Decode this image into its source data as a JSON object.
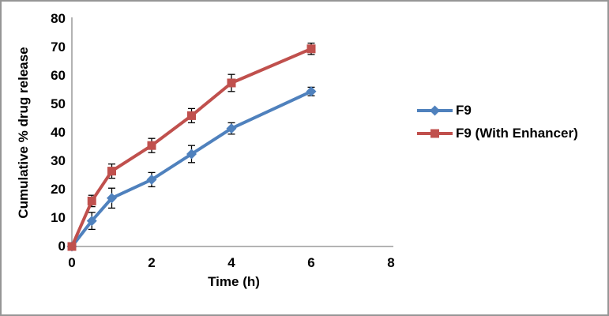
{
  "window": {
    "background": "#ffffff",
    "border_color": "#969696",
    "axis_color": "#9a9a9a",
    "error_bar_color": "#000000"
  },
  "chart_data": {
    "type": "line",
    "title": "",
    "xlabel": "Time (h)",
    "ylabel": "Cumulative % drug release",
    "xlim": [
      0,
      8
    ],
    "ylim": [
      0,
      80
    ],
    "x_ticks": [
      0,
      2,
      4,
      6,
      8
    ],
    "y_ticks": [
      0,
      10,
      20,
      30,
      40,
      50,
      60,
      70,
      80
    ],
    "grid": false,
    "legend_position": "right",
    "x": [
      0,
      0.5,
      1,
      2,
      3,
      4,
      6
    ],
    "series": [
      {
        "name": "F9",
        "color": "#4F81BD",
        "marker": "diamond",
        "values": [
          0,
          9,
          17,
          23.5,
          32.5,
          41.5,
          54.5
        ],
        "errors": [
          0,
          3,
          3.5,
          2.5,
          3,
          2,
          1.5
        ]
      },
      {
        "name": "F9 (With Enhancer)",
        "color": "#C0504D",
        "marker": "square",
        "values": [
          0,
          16,
          26.5,
          35.5,
          46,
          57.5,
          69.5
        ],
        "errors": [
          0,
          2,
          2.5,
          2.5,
          2.5,
          3,
          2
        ]
      }
    ]
  }
}
